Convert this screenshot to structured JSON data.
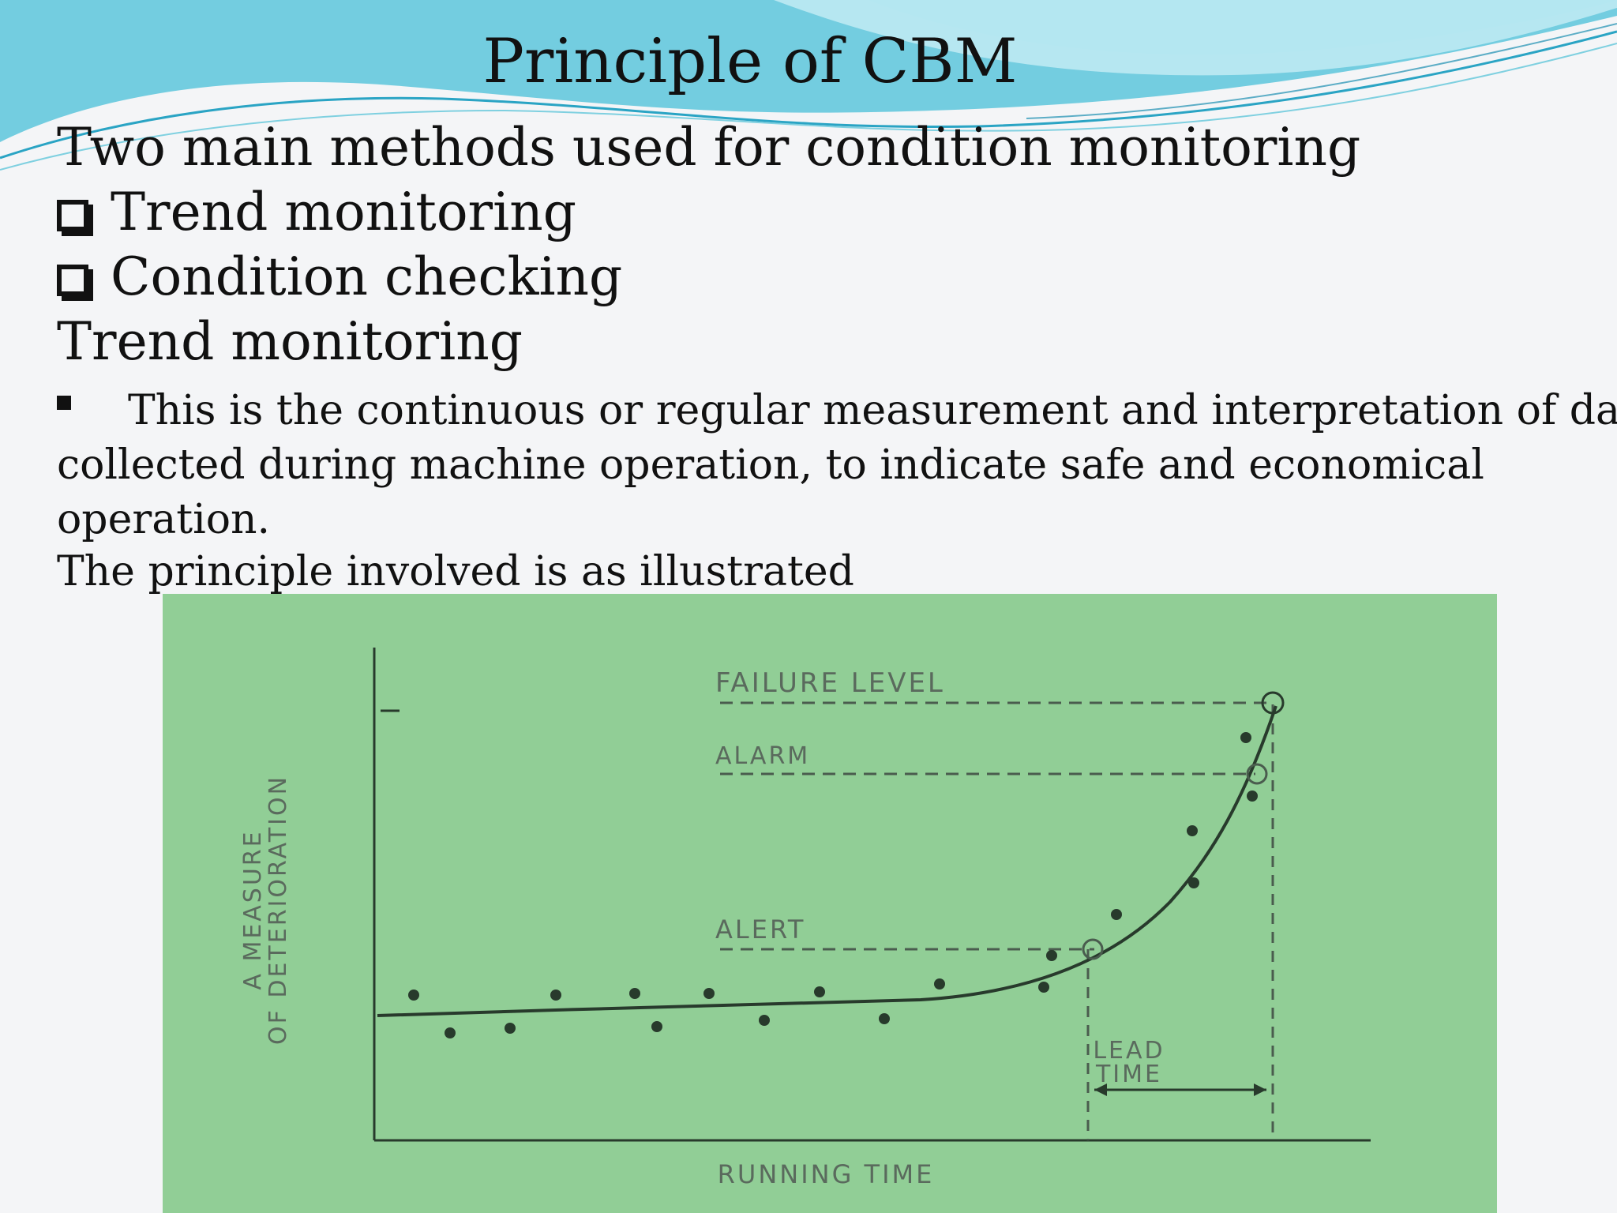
{
  "slide": {
    "title": "Principle of CBM",
    "intro": "Two main methods used for condition monitoring",
    "methods": [
      "Trend monitoring",
      "Condition checking"
    ],
    "section_heading": "Trend monitoring",
    "description": [
      "This is the continuous or regular measurement and interpretation of data,",
      "collected during machine operation, to indicate safe and economical",
      "operation."
    ],
    "principle_line": "The principle involved is as illustrated"
  },
  "figure": {
    "y_axis_label_line1": "A MEASURE",
    "y_axis_label_line2": "OF DETERIORATION",
    "x_axis_label": "RUNNING TIME",
    "levels": {
      "failure": "FAILURE LEVEL",
      "alarm": "ALARM",
      "alert": "ALERT"
    },
    "lead_time_line1": "LEAD",
    "lead_time_line2": "TIME",
    "colors": {
      "panel": "#91ce96",
      "ink": "#283a2c",
      "labels": "#5a6a5d"
    }
  }
}
